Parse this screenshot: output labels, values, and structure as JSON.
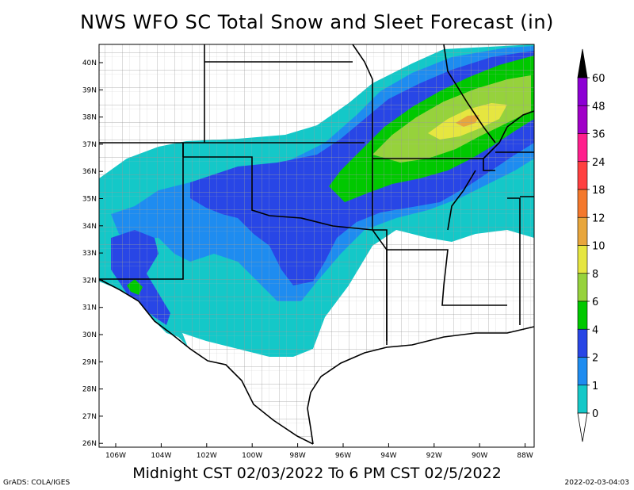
{
  "title": "NWS WFO SC Total Snow and Sleet Forecast (in)",
  "subtitle": "Midnight CST 02/03/2022 To 6 PM CST 02/5/2022",
  "footer": {
    "left": "GrADS: COLA/IGES",
    "right": "2022-02-03-04:03"
  },
  "axes": {
    "lat_ticks": [
      "40N",
      "39N",
      "38N",
      "37N",
      "36N",
      "35N",
      "34N",
      "33N",
      "32N",
      "31N",
      "30N",
      "29N",
      "28N",
      "27N",
      "26N"
    ],
    "lon_ticks": [
      "106W",
      "104W",
      "102W",
      "100W",
      "98W",
      "96W",
      "94W",
      "92W",
      "90W",
      "88W"
    ]
  },
  "legend": {
    "levels": [
      "60",
      "48",
      "36",
      "24",
      "18",
      "12",
      "10",
      "8",
      "6",
      "4",
      "2",
      "1",
      "0"
    ],
    "colors": {
      "above_60": "#000000",
      "48_60": "#8c00d4",
      "36_48": "#a000c8",
      "24_36": "#ff1f8c",
      "18_24": "#ff4040",
      "12_18": "#f4782c",
      "10_12": "#e8a63c",
      "8_10": "#e6e640",
      "6_8": "#96d23c",
      "4_6": "#00c800",
      "2_4": "#2846e6",
      "1_2": "#1e8cf0",
      "0_1": "#14c8c8"
    }
  },
  "map_colors": {
    "zero": "#ffffff",
    "county": "#9a9a9a",
    "state": "#000000"
  }
}
